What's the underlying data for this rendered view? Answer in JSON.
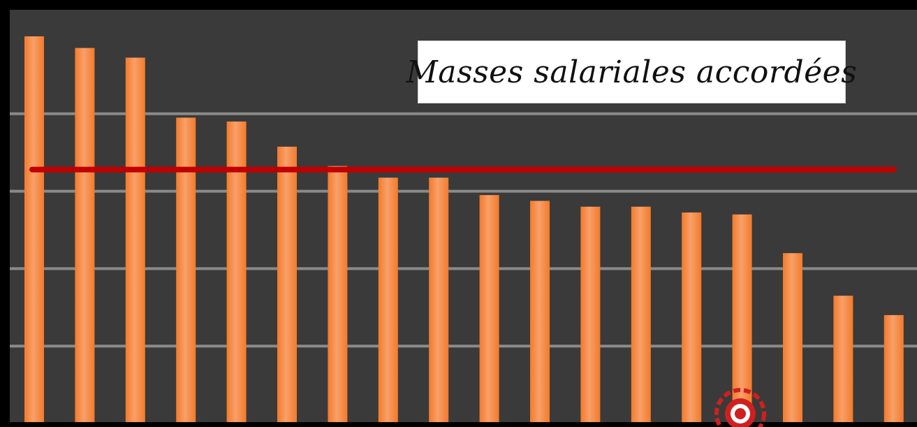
{
  "chart_data": {
    "type": "bar",
    "title": "Masses salariales accordées",
    "xlabel": "",
    "ylabel": "",
    "categories": [
      "",
      "",
      "",
      "",
      "",
      "",
      "",
      "",
      "",
      "",
      "",
      "",
      "",
      "",
      "",
      "",
      "",
      ""
    ],
    "values": [
      100,
      97,
      94.5,
      79,
      78,
      71.5,
      66.5,
      63.5,
      63.5,
      59,
      57.5,
      56,
      56,
      54.5,
      54,
      44,
      33,
      28
    ],
    "reference_line": {
      "value": 65.6,
      "color": "#c00000"
    },
    "ylim": [
      0,
      110
    ],
    "grid": true,
    "legend": "none",
    "colors": {
      "bar": "#f37a2a",
      "bar_highlight": "#f8a06a",
      "plot_background": "#3a3a3a",
      "gridline": "#8a8a8a",
      "frame": "#000000"
    }
  },
  "watermark": {
    "icon": "team-logo-icon",
    "color": "#d01f1f"
  }
}
